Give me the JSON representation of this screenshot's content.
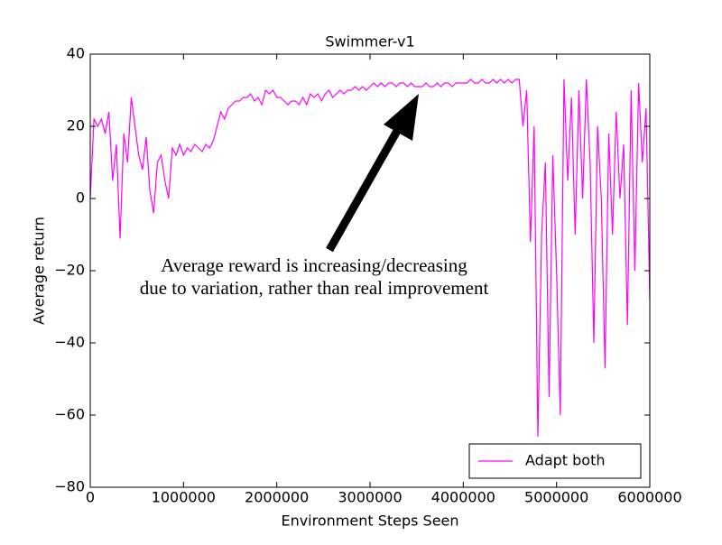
{
  "chart_data": {
    "type": "line",
    "title": "Swimmer-v1",
    "xlabel": "Environment Steps Seen",
    "ylabel": "Average return",
    "annotation": [
      "Average reward is increasing/decreasing",
      "due to variation, rather than real improvement"
    ],
    "x": [
      0,
      40000,
      80000,
      120000,
      160000,
      200000,
      240000,
      280000,
      320000,
      360000,
      400000,
      440000,
      480000,
      520000,
      560000,
      600000,
      640000,
      680000,
      720000,
      760000,
      800000,
      840000,
      880000,
      920000,
      960000,
      1000000,
      1040000,
      1080000,
      1120000,
      1160000,
      1200000,
      1240000,
      1280000,
      1320000,
      1360000,
      1400000,
      1440000,
      1480000,
      1520000,
      1560000,
      1600000,
      1640000,
      1680000,
      1720000,
      1760000,
      1800000,
      1840000,
      1880000,
      1920000,
      1960000,
      2000000,
      2040000,
      2080000,
      2120000,
      2160000,
      2200000,
      2240000,
      2280000,
      2320000,
      2360000,
      2400000,
      2440000,
      2480000,
      2520000,
      2560000,
      2600000,
      2640000,
      2680000,
      2720000,
      2760000,
      2800000,
      2840000,
      2880000,
      2920000,
      2960000,
      3000000,
      3040000,
      3080000,
      3120000,
      3160000,
      3200000,
      3240000,
      3280000,
      3320000,
      3360000,
      3400000,
      3440000,
      3480000,
      3520000,
      3560000,
      3600000,
      3640000,
      3680000,
      3720000,
      3760000,
      3800000,
      3840000,
      3880000,
      3920000,
      3960000,
      4000000,
      4040000,
      4080000,
      4120000,
      4160000,
      4200000,
      4240000,
      4280000,
      4320000,
      4360000,
      4400000,
      4440000,
      4480000,
      4520000,
      4560000,
      4600000,
      4640000,
      4680000,
      4720000,
      4760000,
      4800000,
      4840000,
      4880000,
      4920000,
      4960000,
      5000000,
      5040000,
      5080000,
      5120000,
      5160000,
      5200000,
      5240000,
      5280000,
      5320000,
      5360000,
      5400000,
      5440000,
      5480000,
      5520000,
      5560000,
      5600000,
      5640000,
      5680000,
      5720000,
      5760000,
      5800000,
      5840000,
      5880000,
      5920000,
      5960000,
      6000000
    ],
    "series": [
      {
        "name": "Adapt both",
        "color": "#ff00ff",
        "values": [
          0,
          22,
          20,
          22,
          18,
          24,
          5,
          15,
          -11,
          18,
          10,
          28,
          20,
          12,
          8,
          17,
          2,
          -4,
          10,
          12,
          5,
          0,
          14,
          12,
          15,
          12,
          14,
          13,
          15,
          14,
          13,
          15,
          14,
          16,
          20,
          24,
          22,
          25,
          26,
          27,
          27,
          28,
          28,
          29,
          27,
          28,
          26,
          30,
          29,
          30,
          28,
          28,
          27,
          26,
          27,
          27,
          26,
          28,
          26,
          29,
          28,
          29,
          27,
          29,
          30,
          28,
          29,
          30,
          29,
          30,
          30,
          31,
          30,
          31,
          30,
          31,
          32,
          31,
          32,
          31,
          32,
          32,
          31,
          32,
          32,
          31,
          32,
          31,
          31,
          31,
          32,
          31,
          31,
          32,
          31,
          32,
          32,
          31,
          32,
          32,
          32,
          32,
          33,
          32,
          32,
          33,
          32,
          32,
          33,
          32,
          33,
          32,
          33,
          32,
          33,
          33,
          20,
          30,
          -12,
          20,
          -66,
          -10,
          10,
          -55,
          12,
          -20,
          -60,
          33,
          5,
          28,
          -10,
          30,
          0,
          33,
          10,
          -40,
          20,
          0,
          -47,
          18,
          -10,
          24,
          0,
          15,
          -35,
          30,
          -20,
          32,
          10,
          25,
          -28
        ]
      }
    ],
    "xlim": [
      0,
      6000000
    ],
    "ylim": [
      -80,
      40
    ],
    "xticks": [
      0,
      1000000,
      2000000,
      3000000,
      4000000,
      5000000,
      6000000
    ],
    "yticks": [
      {
        "value": -80,
        "label": "−80"
      },
      {
        "value": -60,
        "label": "−60"
      },
      {
        "value": -40,
        "label": "−40"
      },
      {
        "value": -20,
        "label": "−20"
      },
      0,
      20,
      40
    ],
    "legend": "lower right"
  }
}
